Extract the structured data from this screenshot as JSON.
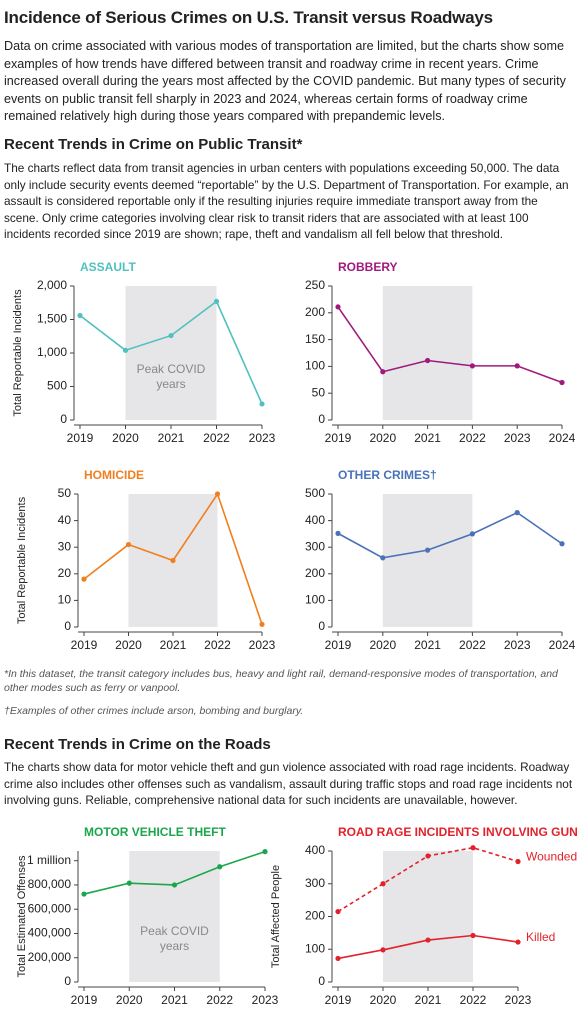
{
  "header": {
    "title": "Incidence of Serious Crimes on U.S. Transit versus Roadways",
    "intro": "Data on crime associated with various modes of transportation are limited, but the charts show some examples of how trends have differed between transit and roadway crime in recent years. Crime increased overall during the years most affected by the COVID pandemic. But many types of security events on public transit fell sharply in 2023 and 2024, whereas certain forms of roadway crime remained relatively high during those years compared with prepandemic levels."
  },
  "transit": {
    "heading": "Recent Trends in Crime on Public Transit*",
    "text": "The charts reflect data from transit agencies in urban centers with populations exceeding 50,000. The data only include security events deemed “reportable” by the U.S. Department of Transportation. For example, an assault is considered reportable only if the resulting injuries require immediate transport away from the scene. Only crime categories involving clear risk to transit riders that are associated with at least 100 incidents recorded since 2019 are shown; rape, theft and vandalism all fell below that threshold."
  },
  "footnotes": [
    "*In this dataset, the transit category includes bus, heavy and light rail, demand-responsive modes of transportation, and other modes such as ferry or vanpool.",
    "†Examples of other crimes include arson, bombing and burglary."
  ],
  "roads": {
    "heading": "Recent Trends in Crime on the Roads",
    "text": "The charts show data for motor vehicle theft and gun violence associated with road rage incidents. Roadway crime also includes other offenses such as vandalism, assault during traffic stops and road rage incidents not involving guns. Reliable, comprehensive national data for such incidents are unavailable, however."
  },
  "chart_data": [
    {
      "type": "line",
      "title": "ASSAULT",
      "y_label": "Total Reportable Incidents",
      "color": "#4fc1bf",
      "categories": [
        "2019",
        "2020",
        "2021",
        "2022",
        "2023"
      ],
      "values": [
        1560,
        1040,
        1260,
        1770,
        240
      ],
      "ylim": [
        0,
        2000
      ],
      "yticks": [
        0,
        500,
        {
          "value": 1000,
          "label": "1,000"
        },
        {
          "value": 1500,
          "label": "1,500"
        },
        {
          "value": 2000,
          "label": "2,000"
        }
      ],
      "shaded_range": [
        "2020",
        "2022"
      ],
      "annotation": "Peak COVID years"
    },
    {
      "type": "line",
      "title": "ROBBERY",
      "color": "#a0197f",
      "categories": [
        "2019",
        "2020",
        "2021",
        "2022",
        "2023",
        "2024"
      ],
      "values": [
        211,
        90,
        111,
        101,
        101,
        70
      ],
      "ylim": [
        0,
        250
      ],
      "yticks": [
        0,
        50,
        100,
        150,
        200,
        250
      ],
      "shaded_range": [
        "2020",
        "2022"
      ]
    },
    {
      "type": "line",
      "title": "HOMICIDE",
      "y_label": "Total Reportable Incidents",
      "color": "#f07f1f",
      "categories": [
        "2019",
        "2020",
        "2021",
        "2022",
        "2023"
      ],
      "values": [
        18,
        31,
        25,
        50,
        1
      ],
      "ylim": [
        0,
        50
      ],
      "yticks": [
        0,
        10,
        20,
        30,
        40,
        50
      ],
      "shaded_range": [
        "2020",
        "2022"
      ]
    },
    {
      "type": "line",
      "title": "OTHER CRIMES†",
      "color": "#4a72b8",
      "categories": [
        "2019",
        "2020",
        "2021",
        "2022",
        "2023",
        "2024"
      ],
      "values": [
        352,
        260,
        289,
        350,
        430,
        313
      ],
      "ylim": [
        0,
        500
      ],
      "yticks": [
        0,
        100,
        200,
        300,
        400,
        500
      ],
      "shaded_range": [
        "2020",
        "2022"
      ]
    },
    {
      "type": "line",
      "title": "MOTOR VEHICLE THEFT",
      "y_label": "Total Estimated Offenses",
      "color": "#1aa64a",
      "categories": [
        "2019",
        "2020",
        "2021",
        "2022",
        "2023"
      ],
      "values": [
        725000,
        815000,
        800000,
        950000,
        1075000
      ],
      "ylim": [
        0,
        1080000
      ],
      "yticks": [
        0,
        {
          "value": 200000,
          "label": "200,000"
        },
        {
          "value": 400000,
          "label": "400,000"
        },
        {
          "value": 600000,
          "label": "600,000"
        },
        {
          "value": 800000,
          "label": "800,000"
        },
        {
          "value": 1000000,
          "label": "1 million"
        }
      ],
      "shaded_range": [
        "2020",
        "2022"
      ],
      "annotation": "Peak COVID years"
    },
    {
      "type": "line",
      "title": "ROAD RAGE INCIDENTS INVOLVING GUNS",
      "y_label": "Total Affected People",
      "categories": [
        "2019",
        "2020",
        "2021",
        "2022",
        "2023"
      ],
      "series": [
        {
          "name": "Wounded",
          "color": "#e4212b",
          "dashed": true,
          "values": [
            215,
            300,
            385,
            410,
            368
          ]
        },
        {
          "name": "Killed",
          "color": "#e4212b",
          "dashed": false,
          "values": [
            72,
            98,
            128,
            142,
            122
          ]
        }
      ],
      "ylim": [
        0,
        400
      ],
      "yticks": [
        0,
        100,
        200,
        300,
        400
      ],
      "shaded_range": [
        "2020",
        "2022"
      ]
    }
  ]
}
